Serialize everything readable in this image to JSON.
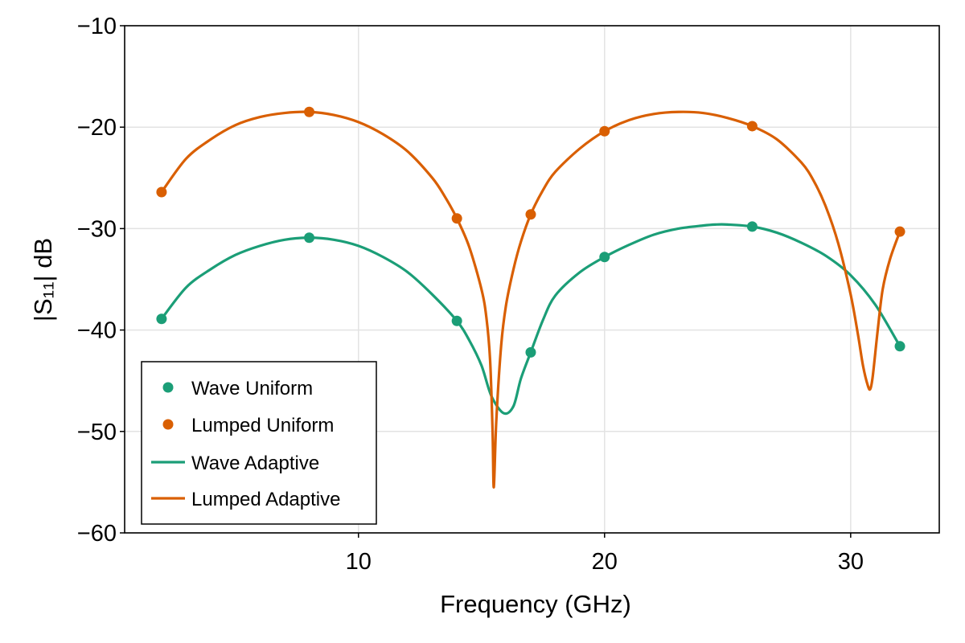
{
  "chart_data": {
    "type": "line",
    "xlabel": "Frequency (GHz)",
    "ylabel": "|S₁₁| dB",
    "xlim": [
      0.5,
      33.6
    ],
    "ylim": [
      -60,
      -10
    ],
    "xticks": [
      10,
      20,
      30
    ],
    "xtick_labels": [
      "10",
      "20",
      "30"
    ],
    "yticks": [
      -60,
      -50,
      -40,
      -30,
      -20,
      -10
    ],
    "ytick_labels": [
      "−60",
      "−50",
      "−40",
      "−30",
      "−20",
      "−10"
    ],
    "grid": true,
    "legend_position": "bottom-left",
    "colors": {
      "wave": "#1b9e77",
      "lumped": "#d95f02"
    },
    "series": [
      {
        "name": "Wave Uniform",
        "style": "scatter",
        "color": "#1b9e77",
        "x": [
          2,
          8,
          14,
          17,
          20,
          26,
          32
        ],
        "y": [
          -38.9,
          -30.9,
          -39.1,
          -42.2,
          -32.8,
          -29.8,
          -41.6
        ]
      },
      {
        "name": "Lumped Uniform",
        "style": "scatter",
        "color": "#d95f02",
        "x": [
          2,
          8,
          14,
          17,
          20,
          26,
          32
        ],
        "y": [
          -26.4,
          -18.5,
          -29.0,
          -28.6,
          -20.4,
          -19.9,
          -30.3
        ]
      },
      {
        "name": "Wave Adaptive",
        "style": "line",
        "color": "#1b9e77",
        "x": [
          2,
          3,
          4,
          5,
          6,
          7,
          8,
          9,
          10,
          11,
          12,
          13,
          14,
          14.5,
          15,
          15.4,
          15.9,
          16.3,
          16.6,
          17,
          17.5,
          18,
          19,
          20,
          21,
          22,
          23,
          24,
          24.5,
          25,
          26,
          27,
          28,
          29,
          30,
          31,
          32
        ],
        "y": [
          -38.9,
          -35.8,
          -34.0,
          -32.6,
          -31.7,
          -31.1,
          -30.9,
          -31.1,
          -31.7,
          -32.8,
          -34.3,
          -36.5,
          -39.1,
          -41.0,
          -43.5,
          -46.5,
          -48.2,
          -47.5,
          -44.8,
          -42.2,
          -39.0,
          -36.6,
          -34.3,
          -32.8,
          -31.6,
          -30.6,
          -30.0,
          -29.7,
          -29.6,
          -29.6,
          -29.8,
          -30.4,
          -31.4,
          -32.7,
          -34.6,
          -37.5,
          -41.6
        ]
      },
      {
        "name": "Lumped Adaptive",
        "style": "line",
        "color": "#d95f02",
        "x": [
          2,
          3,
          4,
          5,
          6,
          7,
          8,
          9,
          10,
          11,
          12,
          13,
          13.5,
          14,
          14.5,
          15,
          15.2,
          15.35,
          15.45,
          15.5,
          15.6,
          15.8,
          16,
          16.3,
          16.6,
          17,
          17.5,
          18,
          19,
          20,
          21,
          22,
          23,
          24,
          25,
          26,
          27,
          28,
          28.5,
          29,
          29.5,
          30,
          30.3,
          30.5,
          30.7,
          30.8,
          30.9,
          31.1,
          31.3,
          31.6,
          32
        ],
        "y": [
          -26.4,
          -23.1,
          -21.2,
          -19.8,
          -19.0,
          -18.6,
          -18.5,
          -18.8,
          -19.5,
          -20.7,
          -22.4,
          -25.0,
          -26.8,
          -29.0,
          -31.8,
          -36.0,
          -38.8,
          -43.0,
          -50.0,
          -55.5,
          -49.0,
          -41.5,
          -37.5,
          -34.0,
          -31.3,
          -28.6,
          -26.2,
          -24.4,
          -22.1,
          -20.4,
          -19.3,
          -18.7,
          -18.5,
          -18.6,
          -19.1,
          -19.9,
          -21.2,
          -23.5,
          -25.3,
          -27.9,
          -31.5,
          -36.5,
          -40.5,
          -43.5,
          -45.5,
          -45.8,
          -44.5,
          -40.0,
          -36.0,
          -33.0,
          -30.3
        ]
      }
    ]
  }
}
